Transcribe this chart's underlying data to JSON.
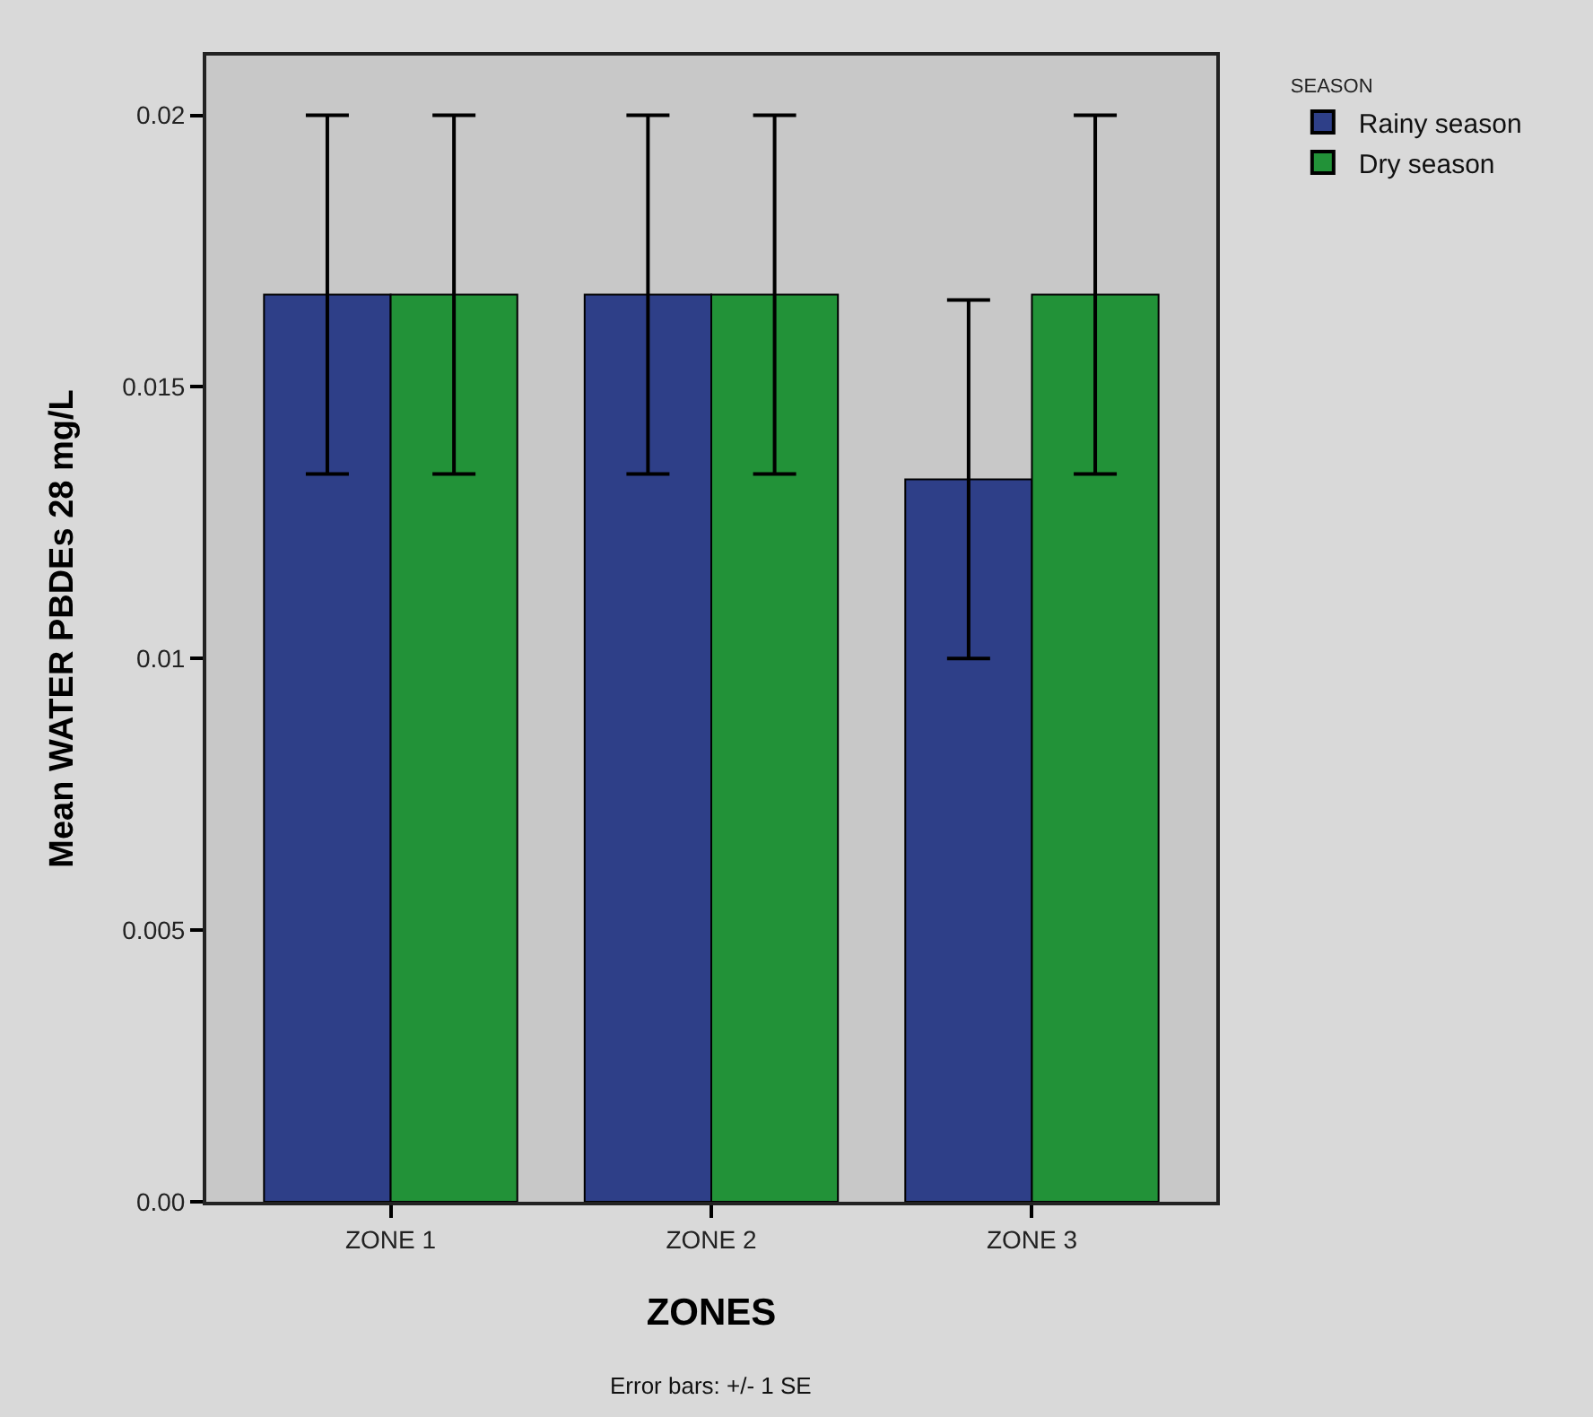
{
  "chart_data": {
    "type": "bar",
    "xlabel": "ZONES",
    "ylabel": "Mean WATER PBDEs 28 mg/L",
    "legend_title": "SEASON",
    "annotations": [
      "Error bars: +/- 1 SE"
    ],
    "categories": [
      "ZONE 1",
      "ZONE 2",
      "ZONE 3"
    ],
    "series": [
      {
        "name": "Rainy season",
        "color": "#2e3f88",
        "values": [
          0.0167,
          0.0167,
          0.0133
        ],
        "errors": [
          0.0033,
          0.0033,
          0.0033
        ]
      },
      {
        "name": "Dry season",
        "color": "#229238",
        "values": [
          0.0167,
          0.0167,
          0.0167
        ],
        "errors": [
          0.0033,
          0.0033,
          0.0033
        ]
      }
    ],
    "ylim": [
      0,
      0.0211
    ],
    "yticks": [
      {
        "value": 0,
        "label": "0.00"
      },
      0.005,
      0.01,
      0.015,
      0.02
    ],
    "grid": false,
    "legend": "top right"
  }
}
